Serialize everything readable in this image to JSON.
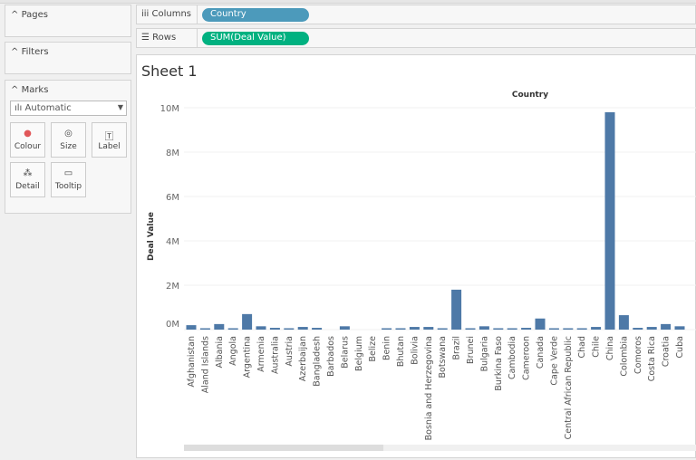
{
  "left_panel": {
    "pages": "Pages",
    "filters": "Filters",
    "marks": "Marks",
    "mark_type": "Automatic",
    "mark_buttons": [
      {
        "label": "Colour",
        "icon": "colour-icon"
      },
      {
        "label": "Size",
        "icon": "size-icon"
      },
      {
        "label": "Label",
        "icon": "label-icon"
      },
      {
        "label": "Detail",
        "icon": "detail-icon"
      },
      {
        "label": "Tooltip",
        "icon": "tooltip-icon"
      }
    ]
  },
  "shelves": {
    "columns_label": "Columns",
    "columns_pill": "Country",
    "columns_color": "#4c9abb",
    "rows_label": "Rows",
    "rows_pill": "SUM(Deal Value)",
    "rows_color": "#00b180"
  },
  "sheet_title": "Sheet 1",
  "chart_data": {
    "type": "bar",
    "title": "Country",
    "ylabel": "Deal Value",
    "ylim": [
      0,
      10000000
    ],
    "y_ticks": [
      "0M",
      "2M",
      "4M",
      "6M",
      "8M",
      "10M"
    ],
    "grid": true,
    "bar_color": "#4e79a7",
    "categories": [
      "Afghanistan",
      "Aland Islands",
      "Albania",
      "Angola",
      "Argentina",
      "Armenia",
      "Australia",
      "Austria",
      "Azerbaijan",
      "Bangladesh",
      "Barbados",
      "Belarus",
      "Belgium",
      "Belize",
      "Benin",
      "Bhutan",
      "Bolivia",
      "Bosnia and Herzegovina",
      "Botswana",
      "Brazil",
      "Brunei",
      "Bulgaria",
      "Burkina Faso",
      "Cambodia",
      "Cameroon",
      "Canada",
      "Cape Verde",
      "Central African Republic",
      "Chad",
      "Chile",
      "China",
      "Colombia",
      "Comoros",
      "Costa Rica",
      "Croatia",
      "Cuba"
    ],
    "values": [
      200000,
      20000,
      250000,
      30000,
      700000,
      150000,
      80000,
      30000,
      120000,
      80000,
      0,
      150000,
      0,
      0,
      30000,
      30000,
      120000,
      120000,
      60000,
      1800000,
      20000,
      150000,
      60000,
      30000,
      80000,
      500000,
      20000,
      20000,
      50000,
      120000,
      9800000,
      650000,
      80000,
      120000,
      250000,
      150000
    ]
  }
}
